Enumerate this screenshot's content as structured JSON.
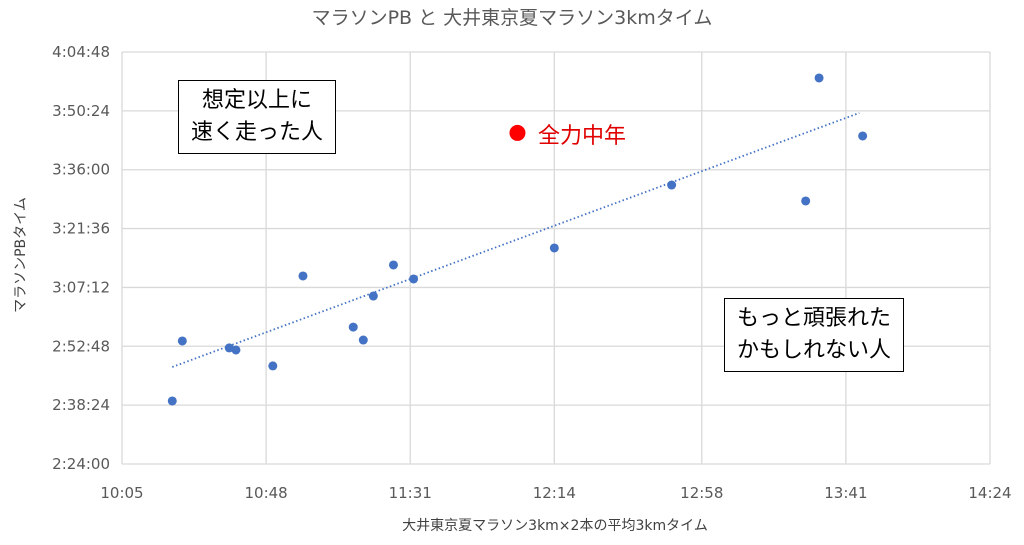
{
  "chart_data": {
    "type": "scatter",
    "title": "マラソンPB と 大井東京夏マラソン3kmタイム",
    "xlabel": "大井東京夏マラソン3km×2本の平均3kmタイム",
    "ylabel": "マラソンPBタイム",
    "x_ticks": [
      "10:05",
      "10:48",
      "11:31",
      "12:14",
      "12:58",
      "13:41",
      "14:24"
    ],
    "y_ticks": [
      "2:24:00",
      "2:38:24",
      "2:52:48",
      "3:07:12",
      "3:21:36",
      "3:36:00",
      "3:50:24",
      "4:04:48"
    ],
    "xlim": [
      "10:05",
      "14:24"
    ],
    "ylim": [
      "2:24:00",
      "4:04:48"
    ],
    "grid": true,
    "series": [
      {
        "color": "#4472c4",
        "x": [
          "10:20",
          "10:23",
          "10:37",
          "10:39",
          "10:50",
          "10:59",
          "11:14",
          "11:17",
          "11:20",
          "11:26",
          "11:32",
          "12:14",
          "12:49",
          "13:29",
          "13:33",
          "13:46"
        ],
        "y": [
          "2:39:25",
          "2:54:06",
          "2:52:24",
          "2:51:54",
          "2:48:00",
          "3:10:00",
          "2:57:30",
          "2:54:20",
          "3:05:06",
          "3:12:42",
          "3:09:16",
          "3:16:51",
          "3:32:15",
          "3:28:21",
          "3:58:27",
          "3:44:15"
        ]
      }
    ],
    "trendline": {
      "type": "linear",
      "style": "dotted",
      "color": "#4472c4",
      "x": [
        "10:20",
        "13:45"
      ],
      "y": [
        "2:47:44",
        "3:49:53"
      ]
    },
    "highlight": {
      "label": "全力中年",
      "color": "#ff0000",
      "x": "12:03",
      "y": "3:45:00"
    },
    "annotations": [
      "想定以上に\n速く走った人",
      "もっと頑張れた\nかもしれない人"
    ]
  }
}
